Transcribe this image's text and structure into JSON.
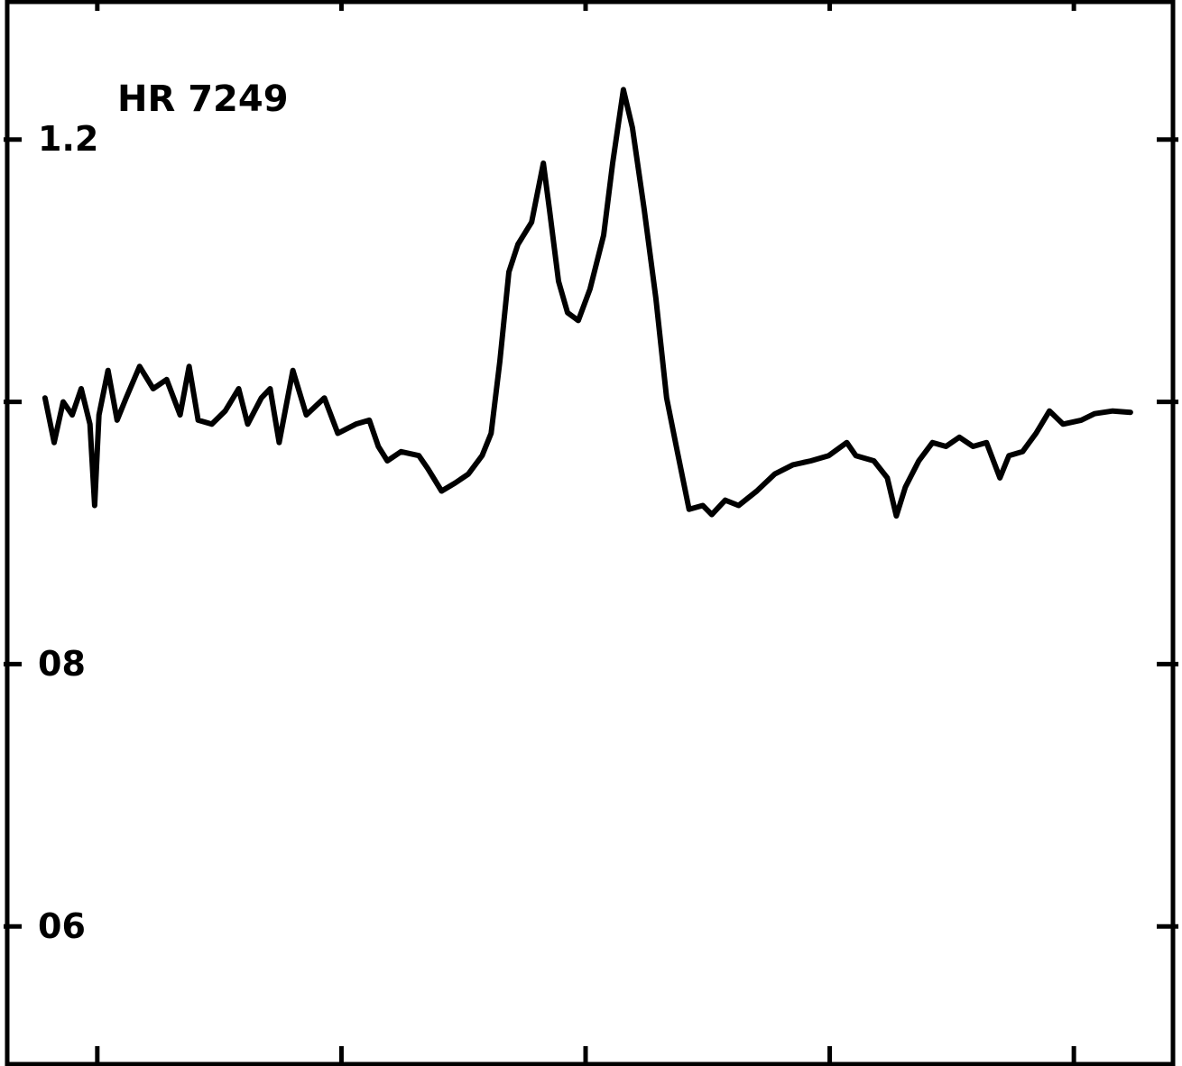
{
  "chart_data": {
    "type": "line",
    "title": "HR 7249",
    "color": "#000000",
    "x": [
      0.786,
      0.823,
      0.86,
      0.897,
      0.934,
      0.97,
      0.989,
      1.007,
      1.044,
      1.081,
      1.118,
      1.173,
      1.229,
      1.284,
      1.339,
      1.376,
      1.413,
      1.469,
      1.524,
      1.579,
      1.616,
      1.672,
      1.708,
      1.745,
      1.801,
      1.856,
      1.93,
      1.985,
      2.059,
      2.114,
      2.151,
      2.188,
      2.244,
      2.317,
      2.354,
      2.41,
      2.465,
      2.52,
      2.576,
      2.613,
      2.649,
      2.686,
      2.723,
      2.779,
      2.827,
      2.852,
      2.889,
      2.926,
      2.97,
      3.018,
      3.074,
      3.111,
      3.155,
      3.192,
      3.24,
      3.288,
      3.332,
      3.376,
      3.424,
      3.48,
      3.517,
      3.572,
      3.627,
      3.701,
      3.775,
      3.849,
      3.923,
      3.996,
      4.07,
      4.107,
      4.181,
      4.236,
      4.273,
      4.31,
      4.365,
      4.421,
      4.476,
      4.531,
      4.587,
      4.642,
      4.697,
      4.734,
      4.79,
      4.845,
      4.9,
      4.956,
      5.03,
      5.085,
      5.159,
      5.232
    ],
    "values": [
      1.003,
      0.969,
      1.0,
      0.99,
      1.01,
      0.983,
      0.921,
      0.99,
      1.024,
      0.986,
      1.003,
      1.027,
      1.01,
      1.017,
      0.99,
      1.027,
      0.986,
      0.983,
      0.993,
      1.01,
      0.983,
      1.003,
      1.01,
      0.969,
      1.024,
      0.99,
      1.003,
      0.976,
      0.983,
      0.986,
      0.966,
      0.955,
      0.962,
      0.959,
      0.949,
      0.932,
      0.938,
      0.945,
      0.959,
      0.976,
      1.031,
      1.099,
      1.12,
      1.137,
      1.182,
      1.147,
      1.092,
      1.068,
      1.062,
      1.086,
      1.127,
      1.182,
      1.238,
      1.209,
      1.147,
      1.079,
      1.003,
      0.962,
      0.918,
      0.921,
      0.914,
      0.925,
      0.921,
      0.932,
      0.945,
      0.952,
      0.955,
      0.959,
      0.969,
      0.959,
      0.955,
      0.942,
      0.913,
      0.935,
      0.955,
      0.969,
      0.966,
      0.973,
      0.966,
      0.969,
      0.942,
      0.959,
      0.962,
      0.976,
      0.993,
      0.983,
      0.986,
      0.991,
      0.993,
      0.992
    ],
    "xlim": [
      0.631,
      5.406
    ],
    "xticks": [
      1,
      2,
      3,
      4,
      5
    ],
    "ylim": [
      0.495,
      1.305
    ],
    "yticks": [
      {
        "value": 0.6,
        "label": "06"
      },
      {
        "value": 0.8,
        "label": "08"
      },
      {
        "value": 1.0,
        "label": null
      },
      1.2
    ]
  }
}
